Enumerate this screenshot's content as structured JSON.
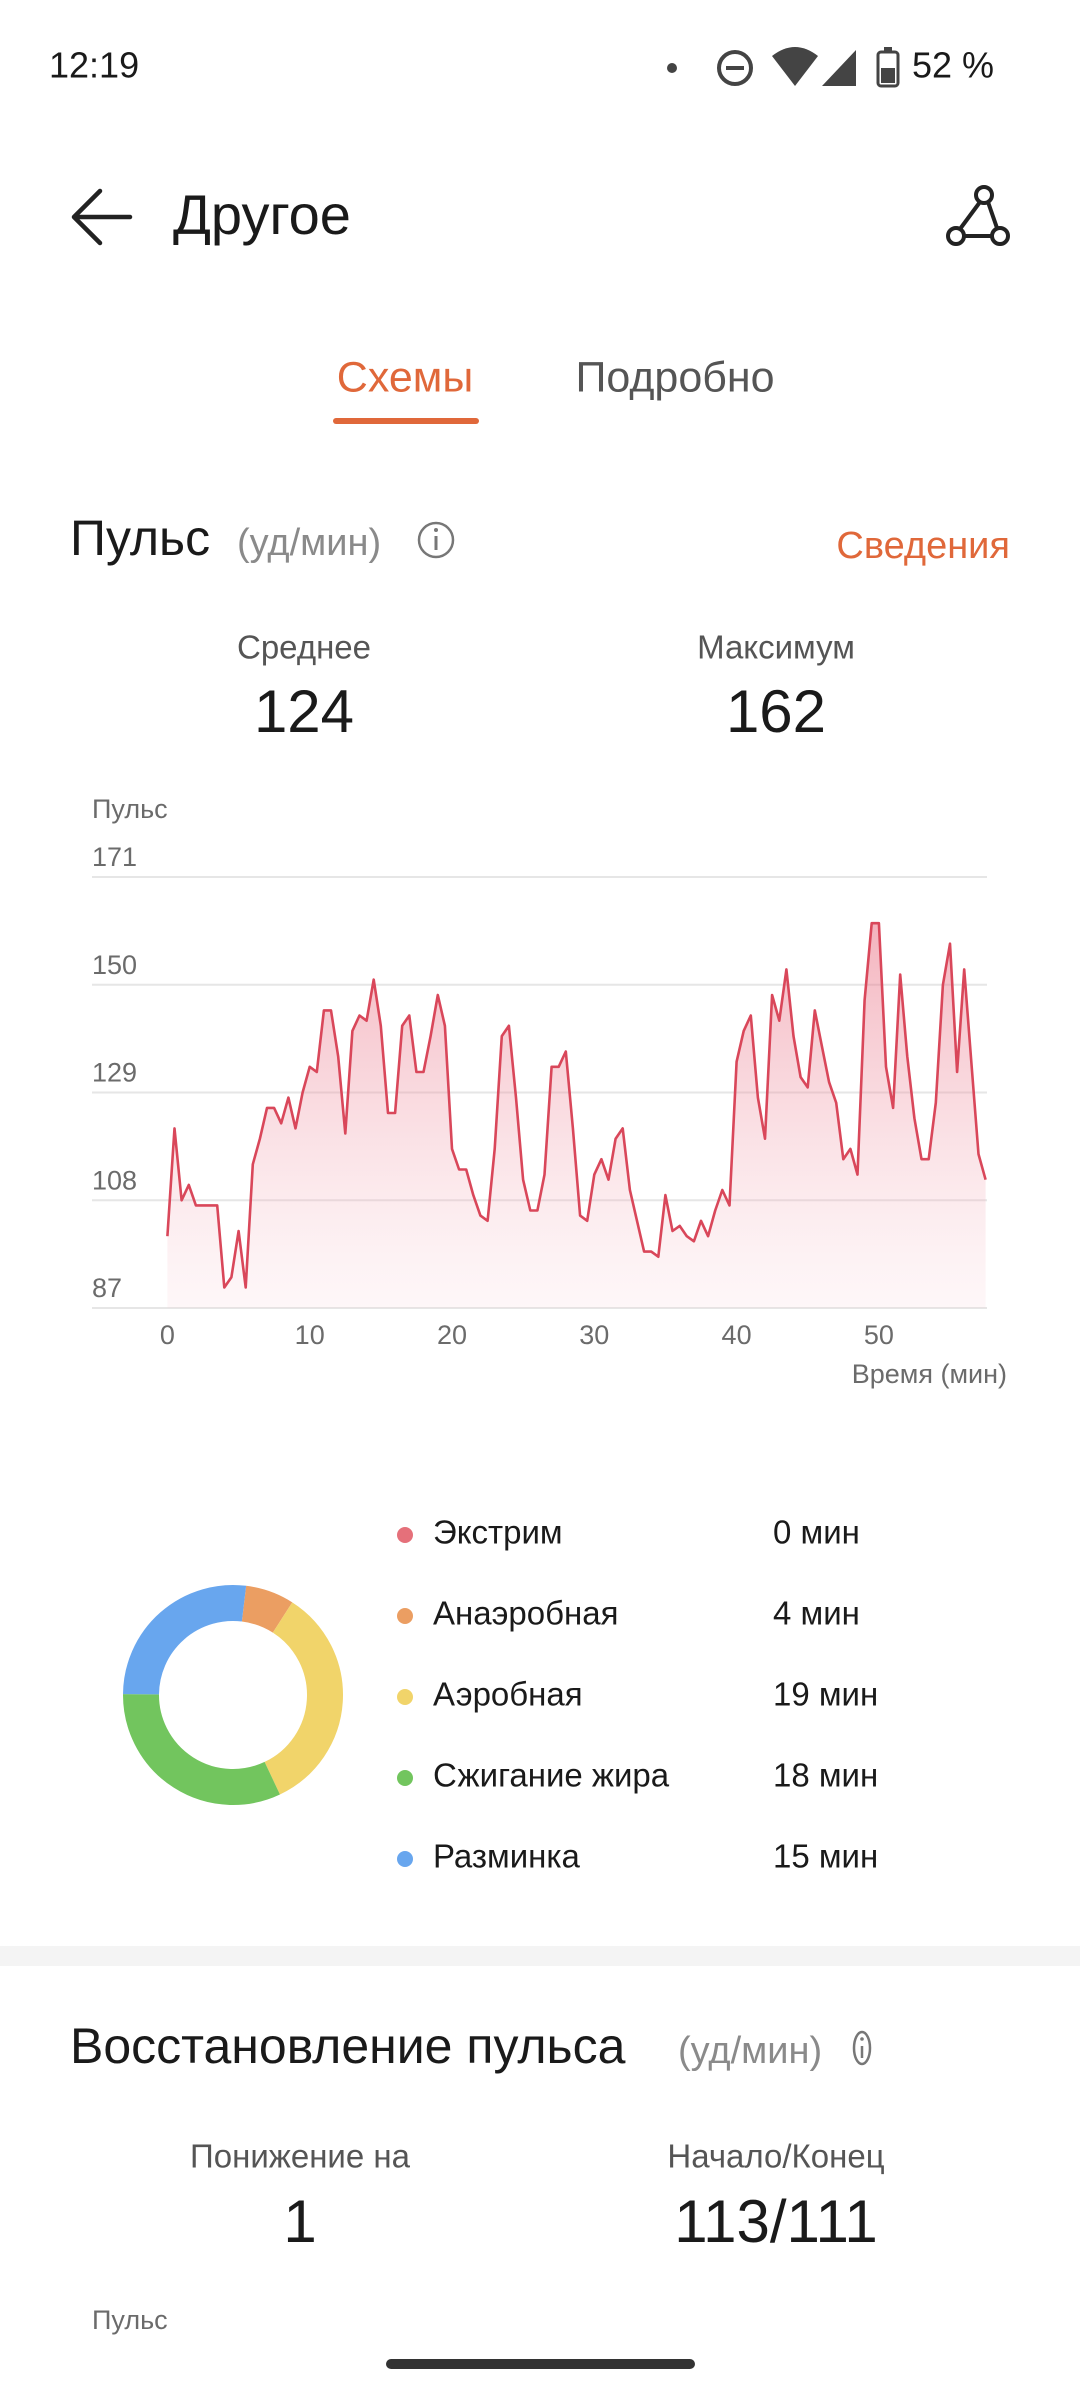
{
  "status_bar": {
    "time": "12:19",
    "battery": "52 %"
  },
  "header": {
    "title": "Другое"
  },
  "tabs": [
    "Схемы",
    "Подробно"
  ],
  "pulse": {
    "title": "Пульс",
    "unit": "(уд/мин)",
    "link": "Сведения",
    "stats": [
      {
        "label": "Среднее",
        "value": "124"
      },
      {
        "label": "Максимум",
        "value": "162"
      }
    ]
  },
  "chart_data": [
    {
      "type": "line",
      "y_label": "Пульс",
      "x_label": "Время (мин)",
      "color": "#d9475a",
      "xlim": [
        -5.3,
        57.6
      ],
      "xticks": [
        0,
        10,
        20,
        30,
        40,
        50
      ],
      "ylim": [
        87,
        171
      ],
      "yticks": [
        87,
        108,
        129,
        150,
        171
      ],
      "grid": true,
      "x": [
        0,
        0.5,
        1,
        1.5,
        2,
        2.5,
        3,
        3.5,
        4,
        4.5,
        5,
        5.5,
        6,
        6.5,
        7,
        7.5,
        8,
        8.5,
        9,
        9.5,
        10,
        10.5,
        11,
        11.5,
        12,
        12.5,
        13,
        13.5,
        14,
        14.5,
        15,
        15.5,
        16,
        16.5,
        17,
        17.5,
        18,
        18.5,
        19,
        19.5,
        20,
        20.5,
        21,
        21.5,
        22,
        22.5,
        23,
        23.5,
        24,
        24.5,
        25,
        25.5,
        26,
        26.5,
        27,
        27.5,
        28,
        28.5,
        29,
        29.5,
        30,
        30.5,
        31,
        31.5,
        32,
        32.5,
        33,
        33.5,
        34,
        34.5,
        35,
        35.5,
        36,
        36.5,
        37,
        37.5,
        38,
        38.5,
        39,
        39.5,
        40,
        40.5,
        41,
        41.5,
        42,
        42.5,
        43,
        43.5,
        44,
        44.5,
        45,
        45.5,
        46,
        46.5,
        47,
        47.5,
        48,
        48.5,
        49,
        49.5,
        50,
        50.5,
        51,
        51.5,
        52,
        52.5,
        53,
        53.5,
        54,
        54.5,
        55,
        55.5,
        56,
        56.5,
        57,
        57.5
      ],
      "values": [
        101,
        122,
        108,
        111,
        107,
        107,
        107,
        107,
        91,
        93,
        102,
        91,
        115,
        120,
        126,
        126,
        123,
        128,
        122,
        129,
        134,
        133,
        145,
        145,
        136,
        121,
        141,
        144,
        143,
        151,
        142,
        125,
        125,
        142,
        144,
        133,
        133,
        140,
        148,
        142,
        118,
        114,
        114,
        109,
        105,
        104,
        118,
        140,
        142,
        128,
        112,
        106,
        106,
        113,
        134,
        134,
        137,
        122,
        105,
        104,
        113,
        116,
        112,
        120,
        122,
        110,
        104,
        98,
        98,
        97,
        109,
        102,
        103,
        101,
        100,
        104,
        101,
        106,
        110,
        107,
        135,
        141,
        144,
        128,
        120,
        148,
        143,
        153,
        140,
        132,
        130,
        145,
        138,
        131,
        127,
        116,
        118,
        113,
        147,
        162,
        162,
        134,
        126,
        152,
        136,
        124,
        116,
        116,
        127,
        150,
        158,
        133,
        153,
        135,
        117,
        112
      ]
    },
    {
      "type": "pie",
      "categories": [
        "Экстрим",
        "Анаэробная",
        "Аэробная",
        "Сжигание жира",
        "Разминка"
      ],
      "values": [
        0,
        4,
        19,
        18,
        15
      ],
      "value_labels": [
        "0 мин",
        "4 мин",
        "19 мин",
        "18 мин",
        "15 мин"
      ],
      "colors": [
        "#e5707a",
        "#eb9e62",
        "#f1d46a",
        "#72c55e",
        "#68a6ee"
      ]
    }
  ],
  "recovery": {
    "title": "Восстановление пульса",
    "unit": "(уд/мин)",
    "stats": [
      {
        "label": "Понижение на",
        "value": "1"
      },
      {
        "label": "Начало/Конец",
        "value": "113/111"
      }
    ],
    "y_label": "Пульс"
  }
}
